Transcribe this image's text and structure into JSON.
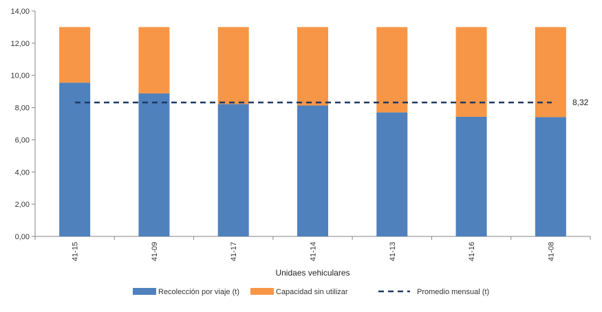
{
  "chart_data": {
    "type": "bar",
    "stacked": true,
    "categories": [
      "41-15",
      "41-09",
      "41-17",
      "41-14",
      "41-13",
      "41-16",
      "41-08"
    ],
    "series": [
      {
        "name": "Recolección por viaje (t)",
        "color": "#4f81bd",
        "values": [
          9.55,
          8.88,
          8.22,
          8.13,
          7.7,
          7.43,
          7.41
        ]
      },
      {
        "name": "Capacidad sin utilizar",
        "color": "#f79646",
        "values": [
          3.45,
          4.12,
          4.78,
          4.87,
          5.3,
          5.57,
          5.59
        ]
      }
    ],
    "reference_line": {
      "name": "Promedio mensual (t)",
      "value": 8.32,
      "label": "8,32",
      "color": "#1f3864",
      "style": "dashed"
    },
    "xlabel": "Unidaes vehiculares",
    "ylabel": "",
    "ylim": [
      0,
      14
    ],
    "yticks": [
      "0,00",
      "2,00",
      "4,00",
      "6,00",
      "8,00",
      "10,00",
      "12,00",
      "14,00"
    ],
    "grid": false,
    "legend_position": "bottom"
  }
}
